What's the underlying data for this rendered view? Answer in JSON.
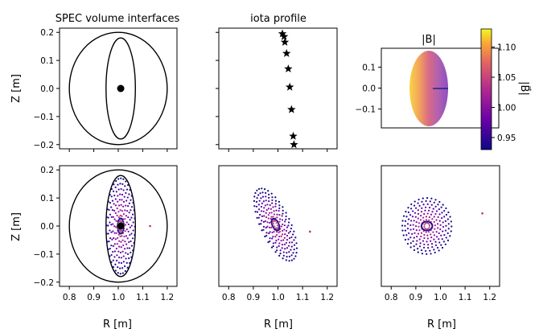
{
  "chart_data": [
    {
      "type": "scatter",
      "title": "SPEC volume interfaces",
      "xlabel": "",
      "ylabel": "Z [m]",
      "xlim": [
        0.76,
        1.24
      ],
      "ylim": [
        -0.215,
        0.215
      ],
      "xticks": [
        0.8,
        0.9,
        1.0,
        1.1,
        1.2
      ],
      "yticks": [
        -0.2,
        -0.1,
        0.0,
        0.1,
        0.2
      ],
      "yticklabels": [
        "−0.2",
        "−0.1",
        "0.0",
        "0.1",
        "0.2"
      ],
      "curves": [
        {
          "name": "",
          "kind": "circle",
          "center": [
            1.0,
            0.0
          ],
          "radius": 0.2
        },
        {
          "name": "",
          "kind": "ellipse",
          "center": [
            1.01,
            0.0
          ],
          "semi_axes": [
            0.06,
            0.18
          ]
        }
      ],
      "points": [
        {
          "x": 1.01,
          "y": 0.0
        }
      ]
    },
    {
      "type": "scatter",
      "title": "iota profile",
      "xlabel": "",
      "ylabel": "",
      "xlim": [
        0.76,
        1.24
      ],
      "ylim": [
        -0.215,
        0.215
      ],
      "xticks": [
        0.8,
        0.9,
        1.0,
        1.1,
        1.2
      ],
      "yticks": [
        -0.2,
        -0.1,
        0.0,
        0.1,
        0.2
      ],
      "x": [
        1.018,
        1.025,
        1.028,
        1.035,
        1.042,
        1.048,
        1.055,
        1.062,
        1.065
      ],
      "y": [
        0.195,
        0.185,
        0.165,
        0.125,
        0.07,
        0.005,
        -0.075,
        -0.17,
        -0.2
      ]
    },
    {
      "type": "heatmap",
      "title": "|B|",
      "xlabel": "",
      "ylabel": "",
      "ylim": [
        -0.19,
        0.19
      ],
      "yticks": [
        -0.1,
        0.0,
        0.1
      ],
      "yticklabels": [
        "−0.1",
        "0.0",
        "0.1"
      ],
      "colorbar": {
        "label": "|B⃗|",
        "range": [
          0.93,
          1.13
        ],
        "ticks": [
          0.95,
          1.0,
          1.05,
          1.1
        ],
        "ticklabels": [
          "0.95",
          "1.00",
          "1.05",
          "1.10"
        ]
      }
    },
    {
      "type": "scatter",
      "title": "",
      "xlabel": "R [m]",
      "ylabel": "Z [m]",
      "xlim": [
        0.76,
        1.24
      ],
      "ylim": [
        -0.215,
        0.215
      ],
      "xticks": [
        0.8,
        0.9,
        1.0,
        1.1,
        1.2
      ],
      "yticks": [
        -0.2,
        -0.1,
        0.0,
        0.1,
        0.2
      ],
      "yticklabels": [
        "−0.2",
        "−0.1",
        "0.0",
        "0.1",
        "0.2"
      ],
      "xticklabels": [
        "0.8",
        "0.9",
        "1.0",
        "1.1",
        "1.2"
      ],
      "curves": [
        {
          "name": "",
          "kind": "circle",
          "center": [
            1.0,
            0.0
          ],
          "radius": 0.2
        },
        {
          "name": "",
          "kind": "ellipse",
          "center": [
            1.01,
            0.0
          ],
          "semi_axes": [
            0.06,
            0.18
          ]
        }
      ],
      "poincare": {
        "center": [
          1.01,
          0.0
        ],
        "semi_axes": [
          0.058,
          0.17
        ],
        "stray_point": [
          1.13,
          0.0
        ]
      }
    },
    {
      "type": "scatter",
      "title": "",
      "xlabel": "R [m]",
      "ylabel": "",
      "xlim": [
        0.76,
        1.24
      ],
      "ylim": [
        -0.215,
        0.215
      ],
      "xticklabels": [
        "0.8",
        "0.9",
        "1.0",
        "1.1",
        "1.2"
      ],
      "poincare": {
        "center": [
          0.99,
          0.005
        ],
        "semi_axes": [
          0.06,
          0.14
        ],
        "tilt_deg": -25,
        "stray_point": [
          1.13,
          -0.02
        ]
      }
    },
    {
      "type": "scatter",
      "title": "",
      "xlabel": "R [m]",
      "ylabel": "",
      "xlim": [
        0.76,
        1.24
      ],
      "ylim": [
        -0.215,
        0.215
      ],
      "xticklabels": [
        "0.8",
        "0.9",
        "1.0",
        "1.1",
        "1.2"
      ],
      "poincare": {
        "center": [
          0.945,
          0.0
        ],
        "semi_axes": [
          0.1,
          0.1
        ],
        "stray_point": [
          1.17,
          0.045
        ]
      }
    }
  ]
}
